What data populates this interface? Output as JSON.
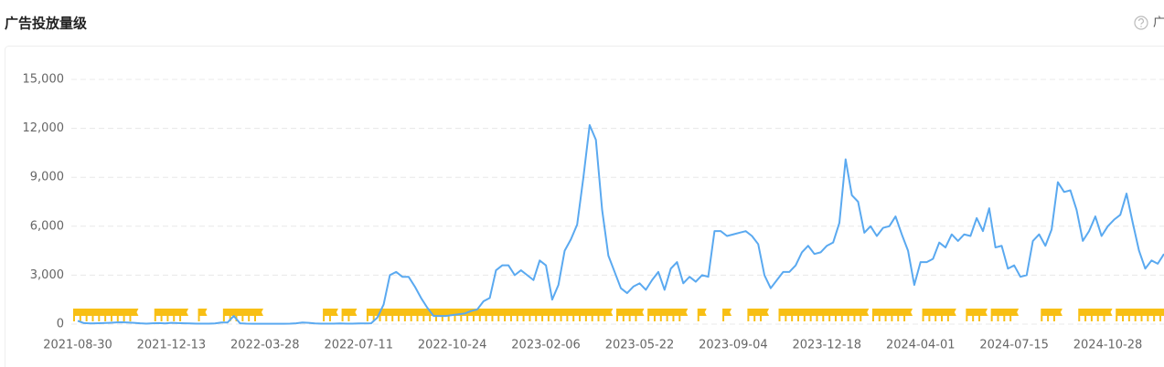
{
  "chart_data": {
    "type": "line",
    "title": "广告投放量级",
    "corner_label": "广",
    "color": "#5aa9f0",
    "marker_color": "#f8bf14",
    "categories": [
      "2021-08-30",
      null,
      null,
      null,
      null,
      null,
      null,
      null,
      null,
      null,
      null,
      null,
      null,
      null,
      null,
      "2021-12-13",
      null,
      null,
      null,
      null,
      null,
      null,
      null,
      null,
      null,
      null,
      null,
      null,
      null,
      null,
      "2022-03-28",
      null,
      null,
      null,
      null,
      null,
      null,
      null,
      null,
      null,
      null,
      null,
      null,
      null,
      null,
      "2022-07-11",
      null,
      null,
      null,
      null,
      null,
      null,
      null,
      null,
      null,
      null,
      null,
      null,
      null,
      null,
      "2022-10-24",
      null,
      null,
      null,
      null,
      null,
      null,
      null,
      null,
      null,
      null,
      null,
      null,
      null,
      null,
      "2023-02-06",
      null,
      null,
      null,
      null,
      null,
      null,
      null,
      null,
      null,
      null,
      null,
      null,
      null,
      null,
      "2023-05-22",
      null,
      null,
      null,
      null,
      null,
      null,
      null,
      null,
      null,
      null,
      null,
      null,
      null,
      null,
      "2023-09-04",
      null,
      null,
      null,
      null,
      null,
      null,
      null,
      null,
      null,
      null,
      null,
      null,
      null,
      null,
      "2023-12-18",
      null,
      null,
      null,
      null,
      null,
      null,
      null,
      null,
      null,
      null,
      null,
      null,
      null,
      null,
      "2024-04-01",
      null,
      null,
      null,
      null,
      null,
      null,
      null,
      null,
      null,
      null,
      null,
      null,
      null,
      null,
      "2024-07-15",
      null,
      null,
      null,
      null,
      null,
      null,
      null,
      null,
      null,
      null,
      null,
      null,
      null,
      null,
      "2024-10-28",
      null,
      null,
      null,
      null,
      null,
      null,
      null,
      null,
      null
    ],
    "values": [
      200,
      60,
      40,
      50,
      60,
      80,
      100,
      110,
      100,
      80,
      50,
      30,
      50,
      60,
      40,
      80,
      60,
      50,
      40,
      30,
      30,
      30,
      40,
      100,
      100,
      500,
      50,
      30,
      20,
      20,
      20,
      20,
      20,
      20,
      30,
      50,
      100,
      80,
      40,
      30,
      30,
      30,
      40,
      30,
      30,
      40,
      40,
      50,
      400,
      1200,
      3000,
      3200,
      2900,
      2900,
      2300,
      1600,
      1000,
      500,
      500,
      500,
      550,
      600,
      650,
      800,
      900,
      1400,
      1600,
      3300,
      3600,
      3600,
      3000,
      3300,
      3000,
      2700,
      3900,
      3600,
      1500,
      2400,
      4500,
      5200,
      6100,
      9000,
      12200,
      11300,
      7000,
      4200,
      3200,
      2200,
      1900,
      2300,
      2500,
      2100,
      2700,
      3200,
      2100,
      3400,
      3800,
      2500,
      2900,
      2600,
      3000,
      2900,
      5700,
      5700,
      5400,
      5500,
      5600,
      5700,
      5400,
      4900,
      3000,
      2200,
      2700,
      3200,
      3200,
      3600,
      4400,
      4800,
      4300,
      4400,
      4800,
      5000,
      6200,
      10100,
      7900,
      7500,
      5600,
      6000,
      5400,
      5900,
      6000,
      6600,
      5500,
      4500,
      2400,
      3800,
      3800,
      4000,
      5000,
      4700,
      5500,
      5100,
      5500,
      5400,
      6500,
      5700,
      7100,
      4700,
      4800,
      3400,
      3600,
      2900,
      3000,
      5100,
      5500,
      4800,
      5800,
      8700,
      8100,
      8200,
      7000,
      5100,
      5700,
      6600,
      5400,
      6000,
      6400,
      6700,
      8000,
      6200,
      4500,
      3400,
      3900,
      3700,
      4300
    ],
    "markers": [
      1,
      1,
      1,
      1,
      1,
      1,
      1,
      1,
      1,
      1,
      0,
      0,
      0,
      1,
      1,
      1,
      1,
      1,
      0,
      0,
      1,
      0,
      0,
      0,
      1,
      1,
      1,
      1,
      1,
      1,
      0,
      0,
      0,
      0,
      0,
      0,
      0,
      0,
      0,
      0,
      1,
      1,
      0,
      1,
      1,
      0,
      0,
      1,
      1,
      1,
      1,
      1,
      1,
      1,
      1,
      1,
      1,
      1,
      1,
      1,
      1,
      1,
      1,
      1,
      1,
      1,
      1,
      1,
      1,
      1,
      1,
      1,
      1,
      1,
      1,
      1,
      1,
      1,
      1,
      1,
      1,
      1,
      1,
      1,
      1,
      1,
      0,
      1,
      1,
      1,
      1,
      0,
      1,
      1,
      1,
      1,
      1,
      1,
      0,
      0,
      1,
      0,
      0,
      0,
      1,
      0,
      0,
      0,
      1,
      1,
      1,
      0,
      0,
      1,
      1,
      1,
      1,
      1,
      1,
      1,
      1,
      1,
      1,
      1,
      1,
      1,
      1,
      0,
      1,
      1,
      1,
      1,
      1,
      1,
      0,
      0,
      1,
      1,
      1,
      1,
      1,
      0,
      0,
      1,
      1,
      1,
      0,
      1,
      1,
      1,
      1,
      0,
      0,
      0,
      0,
      1,
      1,
      1,
      0,
      0,
      0,
      1,
      1,
      1,
      1,
      1,
      0,
      1,
      1,
      1,
      1,
      1,
      1,
      1,
      1
    ],
    "ylim": [
      0,
      15000
    ],
    "yticks": [
      0,
      {
        "value": 3000,
        "label": "3,000"
      },
      {
        "value": 6000,
        "label": "6,000"
      },
      {
        "value": 9000,
        "label": "9,000"
      },
      {
        "value": 12000,
        "label": "12,000"
      },
      {
        "value": 15000,
        "label": "15,000"
      }
    ],
    "grid": true
  }
}
